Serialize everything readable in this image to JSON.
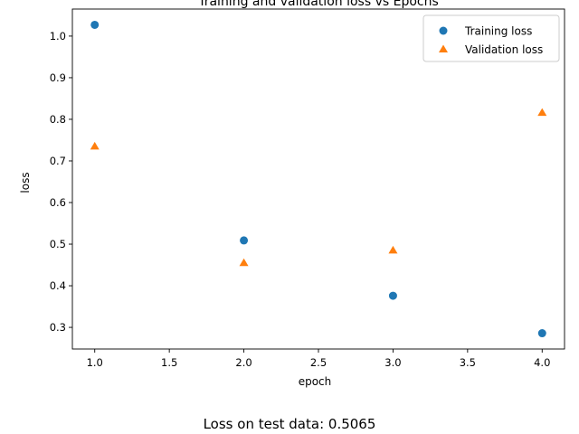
{
  "chart_data": {
    "type": "scatter",
    "title": "Training and validation loss vs Epochs",
    "xlabel": "epoch",
    "ylabel": "loss",
    "xlim": [
      0.85,
      4.15
    ],
    "ylim": [
      0.248,
      1.065
    ],
    "xticks": [
      1.0,
      1.5,
      2.0,
      2.5,
      3.0,
      3.5,
      4.0
    ],
    "xtick_labels": [
      "1.0",
      "1.5",
      "2.0",
      "2.5",
      "3.0",
      "3.5",
      "4.0"
    ],
    "yticks": [
      0.3,
      0.4,
      0.5,
      0.6,
      0.7,
      0.8,
      0.9,
      1.0
    ],
    "ytick_labels": [
      "0.3",
      "0.4",
      "0.5",
      "0.6",
      "0.7",
      "0.8",
      "0.9",
      "1.0"
    ],
    "grid": false,
    "legend_position": "top-right",
    "series": [
      {
        "name": "Training loss",
        "marker": "circle",
        "color": "#1f77b4",
        "x": [
          1,
          2,
          3,
          4
        ],
        "y": [
          1.027,
          0.509,
          0.376,
          0.286
        ]
      },
      {
        "name": "Validation loss",
        "marker": "triangle",
        "color": "#ff7f0e",
        "x": [
          1,
          2,
          3,
          4
        ],
        "y": [
          0.735,
          0.455,
          0.485,
          0.816
        ]
      }
    ],
    "caption": "Loss on test data: 0.5065"
  }
}
